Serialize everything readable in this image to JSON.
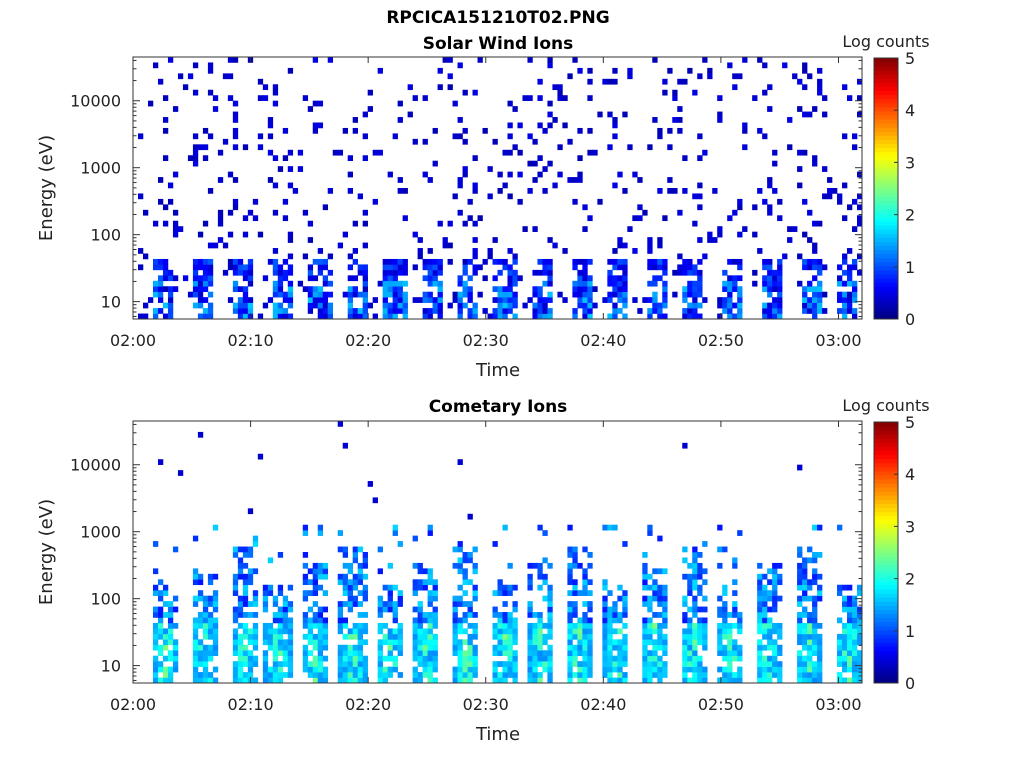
{
  "figure": {
    "title": "RPCICA151210T02.PNG"
  },
  "chart_data": [
    {
      "type": "heatmap",
      "title": "Solar Wind Ions",
      "xlabel": "Time",
      "ylabel": "Energy (eV)",
      "x_ticks": [
        "02:00",
        "02:10",
        "02:20",
        "02:30",
        "02:40",
        "02:50",
        "03:00"
      ],
      "x_range_minutes": [
        0,
        62
      ],
      "y_scale": "log",
      "y_ticks": [
        10,
        100,
        1000,
        10000
      ],
      "y_tick_labels": [
        "10",
        "100",
        "1000",
        "10000"
      ],
      "ylim": [
        5.5,
        45000
      ],
      "colorbar": {
        "label": "Log counts",
        "range": [
          0,
          5
        ],
        "ticks": [
          "0",
          "1",
          "2",
          "3",
          "4",
          "5"
        ],
        "colormap": "jet"
      },
      "pattern": "sparse single-count background 5 eV - 30 keV; repeating low-energy bursts below ~50 eV",
      "burst_times_minutes": [
        2.5,
        5.8,
        9.2,
        12.6,
        15.9,
        19.1,
        22.3,
        25.6,
        28.3,
        31.6,
        34.9,
        38.1,
        41.3,
        44.5,
        47.6,
        50.8,
        54.2,
        57.6,
        60.8
      ]
    },
    {
      "type": "heatmap",
      "title": "Cometary Ions",
      "xlabel": "Time",
      "ylabel": "Energy (eV)",
      "x_ticks": [
        "02:00",
        "02:10",
        "02:20",
        "02:30",
        "02:40",
        "02:50",
        "03:00"
      ],
      "x_range_minutes": [
        0,
        62
      ],
      "y_scale": "log",
      "y_ticks": [
        10,
        100,
        1000,
        10000
      ],
      "y_tick_labels": [
        "10",
        "100",
        "1000",
        "10000"
      ],
      "ylim": [
        5.5,
        45000
      ],
      "colorbar": {
        "label": "Log counts",
        "range": [
          0,
          5
        ],
        "ticks": [
          "0",
          "1",
          "2",
          "3",
          "4",
          "5"
        ],
        "colormap": "jet"
      },
      "pattern": "periodic bursts from ~6 eV up to ~500 eV, peak log counts ~2.5 near 10-40 eV",
      "burst_times_minutes": [
        2.8,
        6.0,
        9.5,
        12.3,
        15.6,
        18.7,
        21.8,
        25.0,
        28.4,
        31.6,
        34.7,
        37.9,
        41.1,
        44.3,
        47.6,
        50.8,
        54.0,
        57.4,
        60.8
      ]
    }
  ]
}
